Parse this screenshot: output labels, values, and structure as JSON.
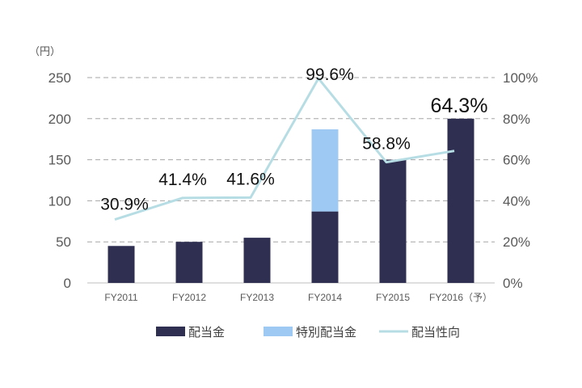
{
  "chart_data": {
    "type": "bar",
    "categories": [
      "FY2011",
      "FY2012",
      "FY2013",
      "FY2014",
      "FY2015",
      "FY2016（予）"
    ],
    "series": [
      {
        "name": "配当金",
        "kind": "bar",
        "stack": "dividend",
        "axis": "left",
        "color": "#2e2f51",
        "values": [
          45,
          50,
          55,
          87,
          150,
          200
        ]
      },
      {
        "name": "特別配当金",
        "kind": "bar",
        "stack": "dividend",
        "axis": "left",
        "color": "#9dc9f3",
        "values": [
          0,
          0,
          0,
          100,
          0,
          0
        ]
      },
      {
        "name": "配当性向",
        "kind": "line",
        "axis": "right",
        "color": "#b7dde4",
        "values": [
          30.9,
          41.4,
          41.6,
          99.6,
          58.8,
          64.3
        ]
      }
    ],
    "data_labels": [
      "30.9%",
      "41.4%",
      "41.6%",
      "99.6%",
      "58.8%",
      "64.3%"
    ],
    "highlight_label_color": "#ff2a00",
    "y_left": {
      "unit_label": "（円）",
      "ylim": [
        0,
        250
      ],
      "ticks": [
        "0",
        "50",
        "100",
        "150",
        "200",
        "250"
      ]
    },
    "y_right": {
      "ylim": [
        0,
        100
      ],
      "ticks": [
        "0%",
        "20%",
        "40%",
        "60%",
        "80%",
        "100%"
      ]
    },
    "grid": "horizontal-dashed",
    "legend_position": "bottom"
  }
}
